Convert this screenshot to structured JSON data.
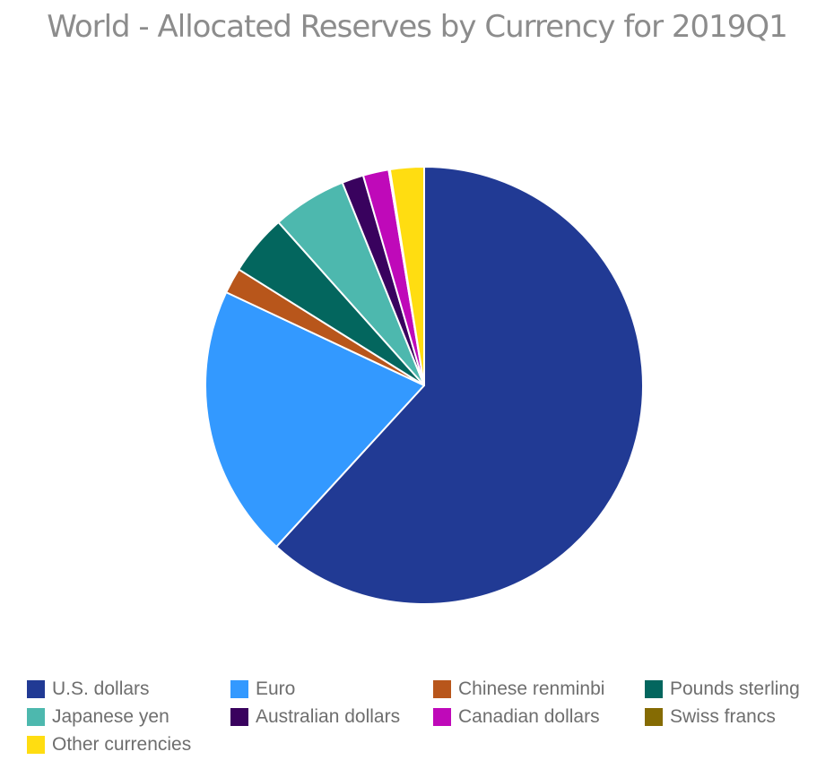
{
  "chart_data": {
    "type": "pie",
    "title": "World - Allocated Reserves by Currency for 2019Q1",
    "slices": [
      {
        "label": "U.S. dollars",
        "value": 61.8,
        "color": "#213a94"
      },
      {
        "label": "Euro",
        "value": 20.2,
        "color": "#3399ff"
      },
      {
        "label": "Chinese renminbi",
        "value": 1.9,
        "color": "#b8561b"
      },
      {
        "label": "Pounds sterling",
        "value": 4.5,
        "color": "#03665e"
      },
      {
        "label": "Japanese yen",
        "value": 5.5,
        "color": "#4db8ae"
      },
      {
        "label": "Australian dollars",
        "value": 1.6,
        "color": "#39025e"
      },
      {
        "label": "Canadian dollars",
        "value": 1.9,
        "color": "#bf09b9"
      },
      {
        "label": "Swiss francs",
        "value": 0.1,
        "color": "#856b03"
      },
      {
        "label": "Other currencies",
        "value": 2.5,
        "color": "#ffdd11"
      }
    ],
    "legend_position": "bottom"
  }
}
